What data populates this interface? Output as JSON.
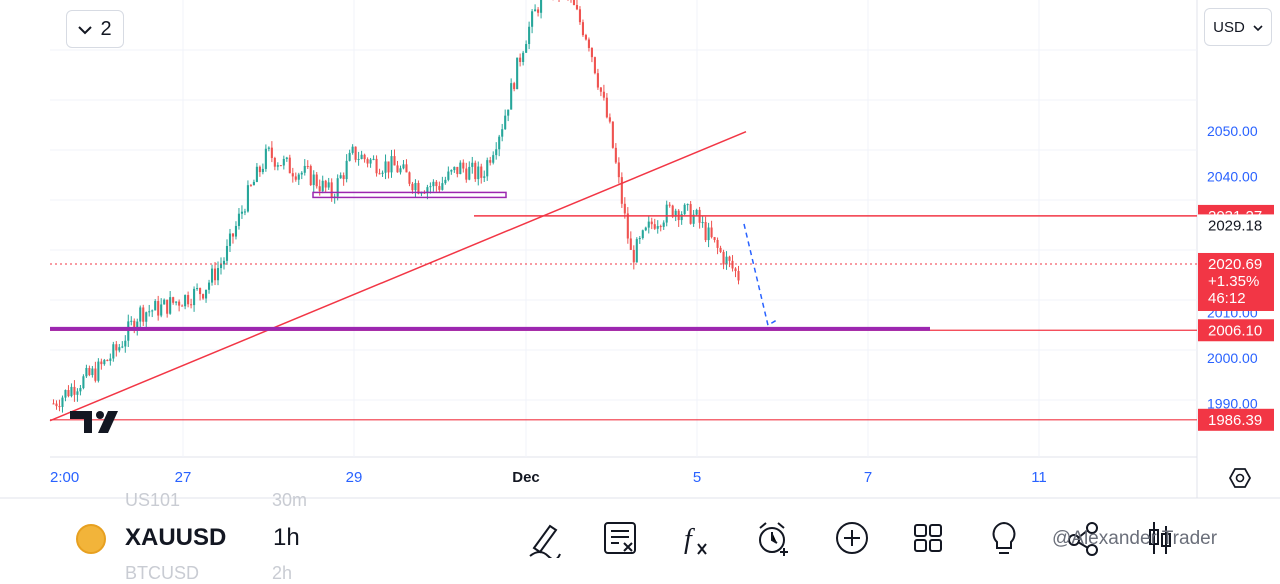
{
  "chart_data": {
    "type": "candlestick",
    "symbol": "XAUUSD",
    "timeframe": "1h",
    "currency": "USD",
    "ylim": [
      1978.2,
      2078.8
    ],
    "y_ticks": [
      "2050.00",
      "2040.00",
      "2010.00",
      "2000.00",
      "1990.00"
    ],
    "x_ticks": [
      "2:00",
      "27",
      "29",
      "Dec",
      "5",
      "7",
      "11"
    ],
    "price_labels": {
      "level_upper": "2031.27",
      "crosshair": "2029.18",
      "current": "2020.69",
      "change": "+1.35%",
      "countdown": "46:12",
      "level_mid": "2006.10",
      "level_low": "1986.39"
    },
    "path_points": [
      [
        1990,
        1991
      ],
      [
        1994,
        1994
      ],
      [
        1997,
        2000
      ],
      [
        2002,
        2006
      ],
      [
        2010,
        2013
      ],
      [
        2011,
        2015
      ],
      [
        2013,
        2012
      ],
      [
        2015,
        2013
      ],
      [
        2022,
        2030
      ],
      [
        2035,
        2038
      ],
      [
        2045,
        2050
      ],
      [
        2042,
        2046
      ],
      [
        2040,
        2042
      ],
      [
        2036,
        2041
      ],
      [
        2045,
        2047
      ],
      [
        2043,
        2046
      ],
      [
        2042,
        2040
      ],
      [
        2038,
        2037
      ],
      [
        2038,
        2040
      ],
      [
        2042,
        2038
      ],
      [
        2040,
        2045
      ],
      [
        2052,
        2060
      ],
      [
        2070,
        2075
      ],
      [
        2082,
        2083
      ],
      [
        2080,
        2078
      ],
      [
        2070,
        2066
      ],
      [
        2050,
        2038
      ],
      [
        2022,
        2024
      ],
      [
        2030,
        2037
      ],
      [
        2033,
        2036
      ],
      [
        2031,
        2030
      ],
      [
        2024,
        2022
      ],
      [
        2018,
        2017
      ]
    ],
    "projection": [
      [
        2029.5,
        2007.2
      ]
    ],
    "support_zones": [
      2036.0,
      2006.4
    ]
  },
  "ui": {
    "layout_count": "2",
    "currency_button": "USD",
    "faded_symbol_above": "US101",
    "faded_tf_above": "30m",
    "faded_symbol_below": "BTCUSD",
    "faded_tf_below": "2h",
    "symbol": "XAUUSD",
    "timeframe": "1h",
    "watermark": "@Alexander Trader",
    "tv_logo": "TV"
  },
  "colors": {
    "bull": "#26a69a",
    "bear": "#ef5350",
    "level": "#f23645",
    "support": "#9c27b0",
    "projection": "#2962ff",
    "axis_text": "#2962ff"
  }
}
